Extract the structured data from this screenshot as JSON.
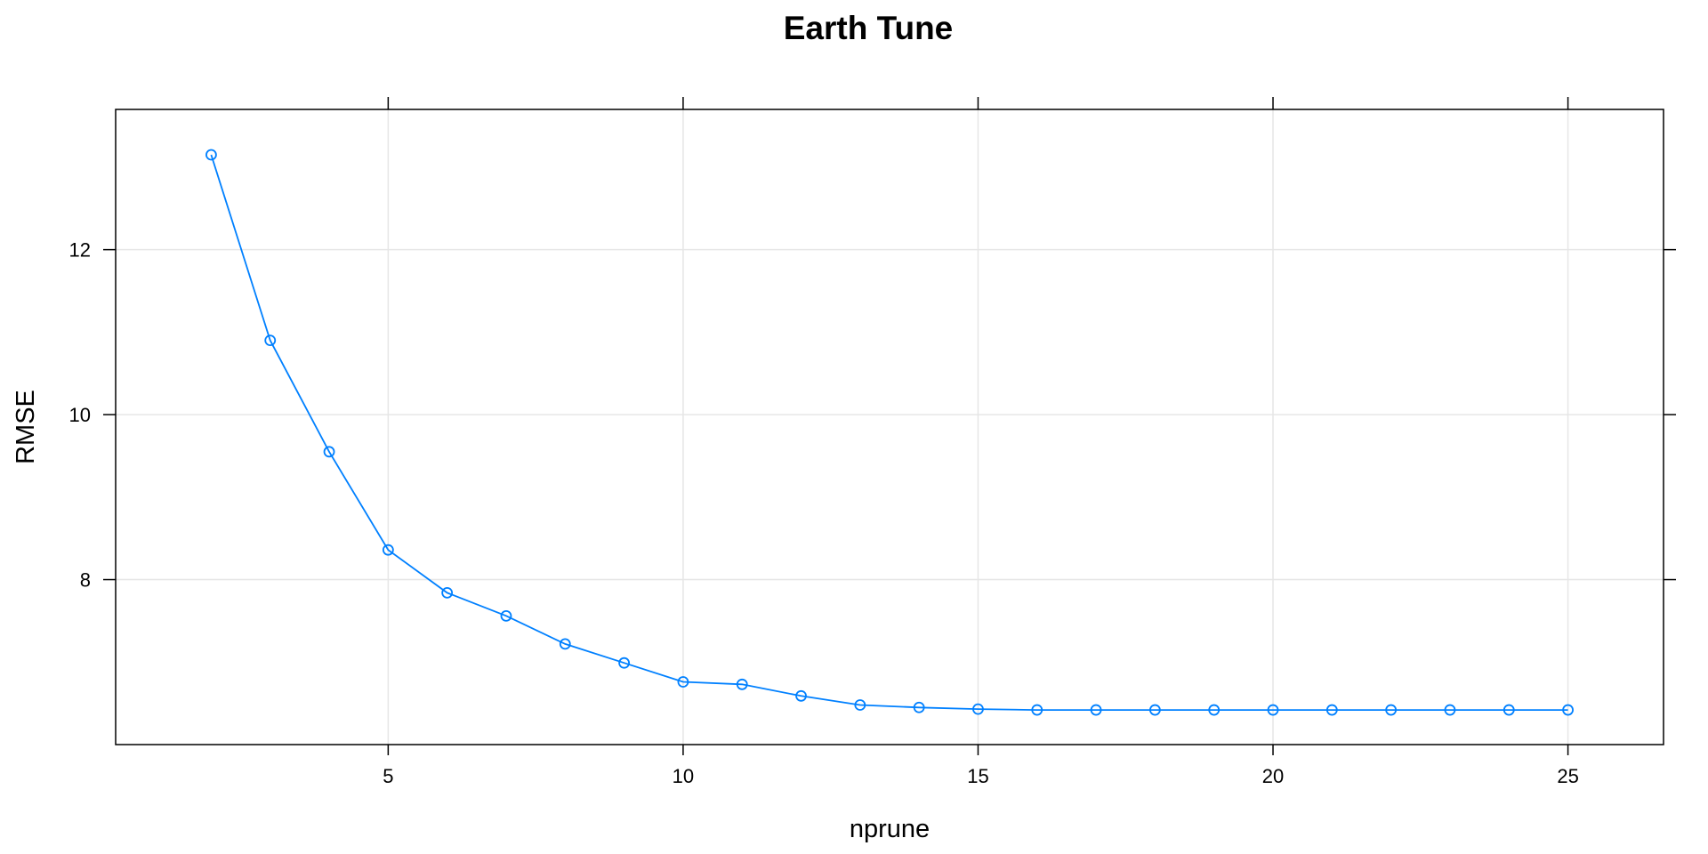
{
  "chart_data": {
    "type": "line",
    "title": "Earth Tune",
    "xlabel": "nprune",
    "ylabel": "RMSE",
    "xlim": [
      0.38,
      26.62
    ],
    "ylim": [
      6.0,
      13.7
    ],
    "x_ticks": [
      5,
      10,
      15,
      20,
      25
    ],
    "y_ticks": [
      12,
      10,
      8
    ],
    "grid": true,
    "series": [
      {
        "color": "#0080ff",
        "marker": "open-circle",
        "x": [
          2,
          3,
          4,
          5,
          6,
          7,
          8,
          9,
          10,
          11,
          12,
          13,
          14,
          15,
          16,
          17,
          18,
          19,
          20,
          21,
          22,
          23,
          24,
          25
        ],
        "values": [
          13.15,
          10.9,
          9.55,
          8.36,
          7.84,
          7.56,
          7.22,
          6.99,
          6.76,
          6.73,
          6.59,
          6.48,
          6.45,
          6.43,
          6.42,
          6.42,
          6.42,
          6.42,
          6.42,
          6.42,
          6.42,
          6.42,
          6.42,
          6.42
        ]
      }
    ]
  },
  "colors": {
    "line": "#0080ff",
    "grid": "#e6e6e6",
    "frame": "#000000"
  }
}
